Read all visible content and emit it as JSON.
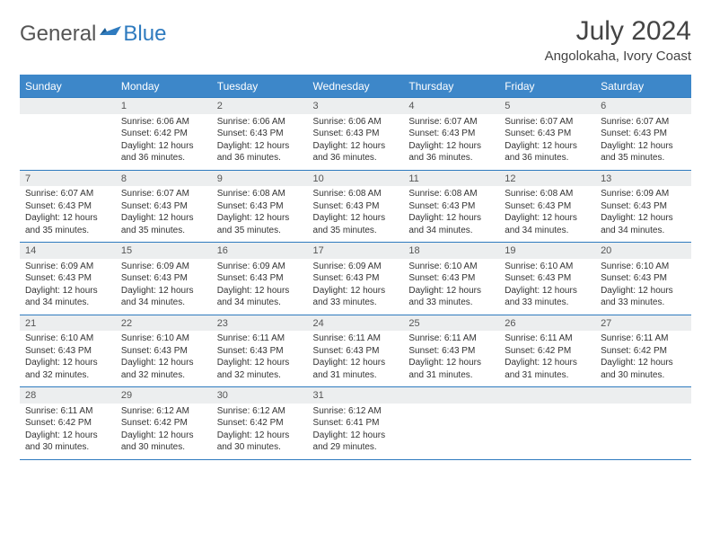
{
  "brand": {
    "part1": "General",
    "part2": "Blue"
  },
  "title": "July 2024",
  "location": "Angolokaha, Ivory Coast",
  "colors": {
    "header_bg": "#3d87c9",
    "header_fg": "#ffffff",
    "datebar_bg": "#eceeef",
    "rule": "#2f7bbf",
    "text": "#333333",
    "brand_gray": "#555555",
    "brand_blue": "#2f7bbf"
  },
  "day_headers": [
    "Sunday",
    "Monday",
    "Tuesday",
    "Wednesday",
    "Thursday",
    "Friday",
    "Saturday"
  ],
  "weeks": [
    {
      "dates": [
        "",
        "1",
        "2",
        "3",
        "4",
        "5",
        "6"
      ],
      "cells": [
        {
          "sunrise": "",
          "sunset": "",
          "daylight": ""
        },
        {
          "sunrise": "Sunrise: 6:06 AM",
          "sunset": "Sunset: 6:42 PM",
          "daylight": "Daylight: 12 hours and 36 minutes."
        },
        {
          "sunrise": "Sunrise: 6:06 AM",
          "sunset": "Sunset: 6:43 PM",
          "daylight": "Daylight: 12 hours and 36 minutes."
        },
        {
          "sunrise": "Sunrise: 6:06 AM",
          "sunset": "Sunset: 6:43 PM",
          "daylight": "Daylight: 12 hours and 36 minutes."
        },
        {
          "sunrise": "Sunrise: 6:07 AM",
          "sunset": "Sunset: 6:43 PM",
          "daylight": "Daylight: 12 hours and 36 minutes."
        },
        {
          "sunrise": "Sunrise: 6:07 AM",
          "sunset": "Sunset: 6:43 PM",
          "daylight": "Daylight: 12 hours and 36 minutes."
        },
        {
          "sunrise": "Sunrise: 6:07 AM",
          "sunset": "Sunset: 6:43 PM",
          "daylight": "Daylight: 12 hours and 35 minutes."
        }
      ]
    },
    {
      "dates": [
        "7",
        "8",
        "9",
        "10",
        "11",
        "12",
        "13"
      ],
      "cells": [
        {
          "sunrise": "Sunrise: 6:07 AM",
          "sunset": "Sunset: 6:43 PM",
          "daylight": "Daylight: 12 hours and 35 minutes."
        },
        {
          "sunrise": "Sunrise: 6:07 AM",
          "sunset": "Sunset: 6:43 PM",
          "daylight": "Daylight: 12 hours and 35 minutes."
        },
        {
          "sunrise": "Sunrise: 6:08 AM",
          "sunset": "Sunset: 6:43 PM",
          "daylight": "Daylight: 12 hours and 35 minutes."
        },
        {
          "sunrise": "Sunrise: 6:08 AM",
          "sunset": "Sunset: 6:43 PM",
          "daylight": "Daylight: 12 hours and 35 minutes."
        },
        {
          "sunrise": "Sunrise: 6:08 AM",
          "sunset": "Sunset: 6:43 PM",
          "daylight": "Daylight: 12 hours and 34 minutes."
        },
        {
          "sunrise": "Sunrise: 6:08 AM",
          "sunset": "Sunset: 6:43 PM",
          "daylight": "Daylight: 12 hours and 34 minutes."
        },
        {
          "sunrise": "Sunrise: 6:09 AM",
          "sunset": "Sunset: 6:43 PM",
          "daylight": "Daylight: 12 hours and 34 minutes."
        }
      ]
    },
    {
      "dates": [
        "14",
        "15",
        "16",
        "17",
        "18",
        "19",
        "20"
      ],
      "cells": [
        {
          "sunrise": "Sunrise: 6:09 AM",
          "sunset": "Sunset: 6:43 PM",
          "daylight": "Daylight: 12 hours and 34 minutes."
        },
        {
          "sunrise": "Sunrise: 6:09 AM",
          "sunset": "Sunset: 6:43 PM",
          "daylight": "Daylight: 12 hours and 34 minutes."
        },
        {
          "sunrise": "Sunrise: 6:09 AM",
          "sunset": "Sunset: 6:43 PM",
          "daylight": "Daylight: 12 hours and 34 minutes."
        },
        {
          "sunrise": "Sunrise: 6:09 AM",
          "sunset": "Sunset: 6:43 PM",
          "daylight": "Daylight: 12 hours and 33 minutes."
        },
        {
          "sunrise": "Sunrise: 6:10 AM",
          "sunset": "Sunset: 6:43 PM",
          "daylight": "Daylight: 12 hours and 33 minutes."
        },
        {
          "sunrise": "Sunrise: 6:10 AM",
          "sunset": "Sunset: 6:43 PM",
          "daylight": "Daylight: 12 hours and 33 minutes."
        },
        {
          "sunrise": "Sunrise: 6:10 AM",
          "sunset": "Sunset: 6:43 PM",
          "daylight": "Daylight: 12 hours and 33 minutes."
        }
      ]
    },
    {
      "dates": [
        "21",
        "22",
        "23",
        "24",
        "25",
        "26",
        "27"
      ],
      "cells": [
        {
          "sunrise": "Sunrise: 6:10 AM",
          "sunset": "Sunset: 6:43 PM",
          "daylight": "Daylight: 12 hours and 32 minutes."
        },
        {
          "sunrise": "Sunrise: 6:10 AM",
          "sunset": "Sunset: 6:43 PM",
          "daylight": "Daylight: 12 hours and 32 minutes."
        },
        {
          "sunrise": "Sunrise: 6:11 AM",
          "sunset": "Sunset: 6:43 PM",
          "daylight": "Daylight: 12 hours and 32 minutes."
        },
        {
          "sunrise": "Sunrise: 6:11 AM",
          "sunset": "Sunset: 6:43 PM",
          "daylight": "Daylight: 12 hours and 31 minutes."
        },
        {
          "sunrise": "Sunrise: 6:11 AM",
          "sunset": "Sunset: 6:43 PM",
          "daylight": "Daylight: 12 hours and 31 minutes."
        },
        {
          "sunrise": "Sunrise: 6:11 AM",
          "sunset": "Sunset: 6:42 PM",
          "daylight": "Daylight: 12 hours and 31 minutes."
        },
        {
          "sunrise": "Sunrise: 6:11 AM",
          "sunset": "Sunset: 6:42 PM",
          "daylight": "Daylight: 12 hours and 30 minutes."
        }
      ]
    },
    {
      "dates": [
        "28",
        "29",
        "30",
        "31",
        "",
        "",
        ""
      ],
      "cells": [
        {
          "sunrise": "Sunrise: 6:11 AM",
          "sunset": "Sunset: 6:42 PM",
          "daylight": "Daylight: 12 hours and 30 minutes."
        },
        {
          "sunrise": "Sunrise: 6:12 AM",
          "sunset": "Sunset: 6:42 PM",
          "daylight": "Daylight: 12 hours and 30 minutes."
        },
        {
          "sunrise": "Sunrise: 6:12 AM",
          "sunset": "Sunset: 6:42 PM",
          "daylight": "Daylight: 12 hours and 30 minutes."
        },
        {
          "sunrise": "Sunrise: 6:12 AM",
          "sunset": "Sunset: 6:41 PM",
          "daylight": "Daylight: 12 hours and 29 minutes."
        },
        {
          "sunrise": "",
          "sunset": "",
          "daylight": ""
        },
        {
          "sunrise": "",
          "sunset": "",
          "daylight": ""
        },
        {
          "sunrise": "",
          "sunset": "",
          "daylight": ""
        }
      ]
    }
  ]
}
